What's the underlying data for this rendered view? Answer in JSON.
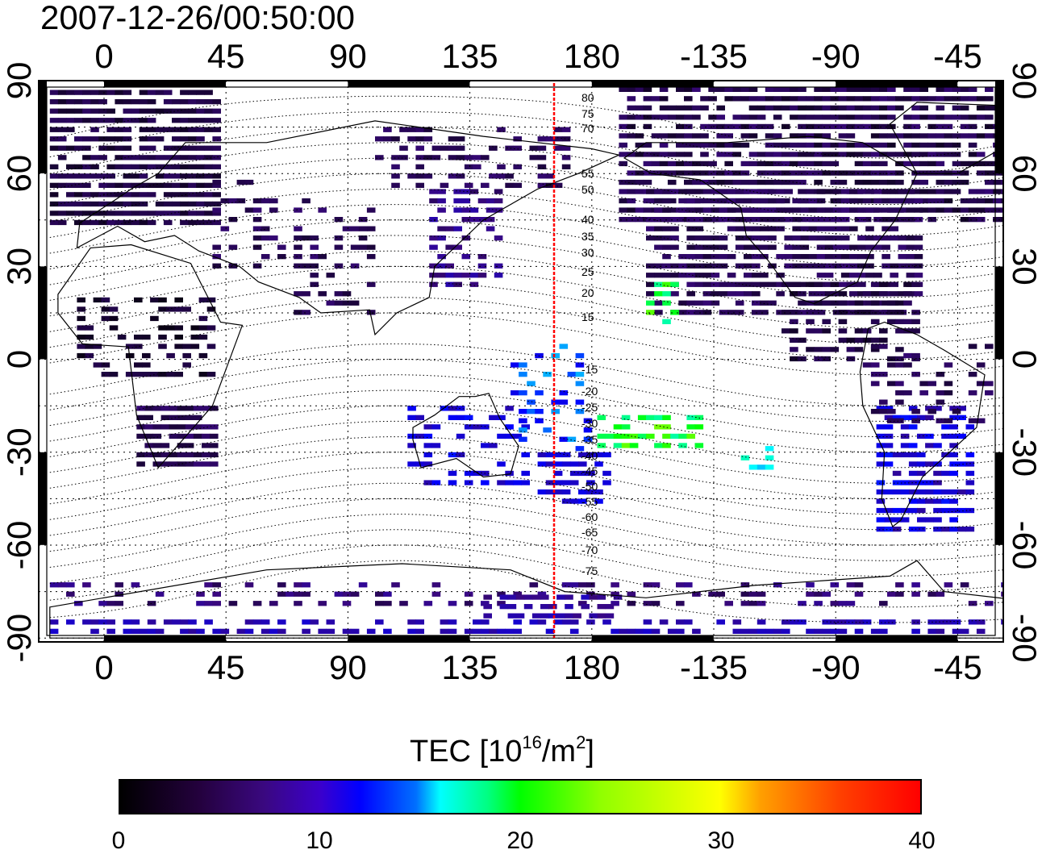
{
  "title": "2007-12-26/00:50:00",
  "top_axis": {
    "labels": [
      "0",
      "45",
      "90",
      "135",
      "180",
      "-135",
      "-90",
      "-45"
    ]
  },
  "bottom_axis": {
    "labels": [
      "0",
      "45",
      "90",
      "135",
      "180",
      "-135",
      "-90",
      "-45"
    ]
  },
  "left_axis": {
    "labels": [
      "90",
      "60",
      "30",
      "0",
      "-30",
      "-60",
      "-90"
    ]
  },
  "right_axis": {
    "labels": [
      "90",
      "60",
      "30",
      "0",
      "-30",
      "-60",
      "-90"
    ]
  },
  "contour_labels": [
    "80",
    "75",
    "70",
    "55",
    "50",
    "40",
    "35",
    "30",
    "25",
    "20",
    "15",
    "-15",
    "-20",
    "-25",
    "-30",
    "-35",
    "-40",
    "-45",
    "-50",
    "-55",
    "-60",
    "-65",
    "-70",
    "-75"
  ],
  "colorbar": {
    "title_prefix": "TEC  [10",
    "title_exp": "16",
    "title_mid": "/m",
    "title_exp2": "2",
    "title_suffix": "]",
    "min": 0,
    "max": 40,
    "tick_labels": [
      "0",
      "10",
      "20",
      "30",
      "40"
    ],
    "colors": [
      "#000000",
      "#3a0880",
      "#0000ff",
      "#00ffff",
      "#00ff00",
      "#ffff00",
      "#ff0000"
    ]
  },
  "map": {
    "longitude_start": -20,
    "meridian_line_lon": 167,
    "meridian_line_color": "#ff0000",
    "grid": true
  }
}
